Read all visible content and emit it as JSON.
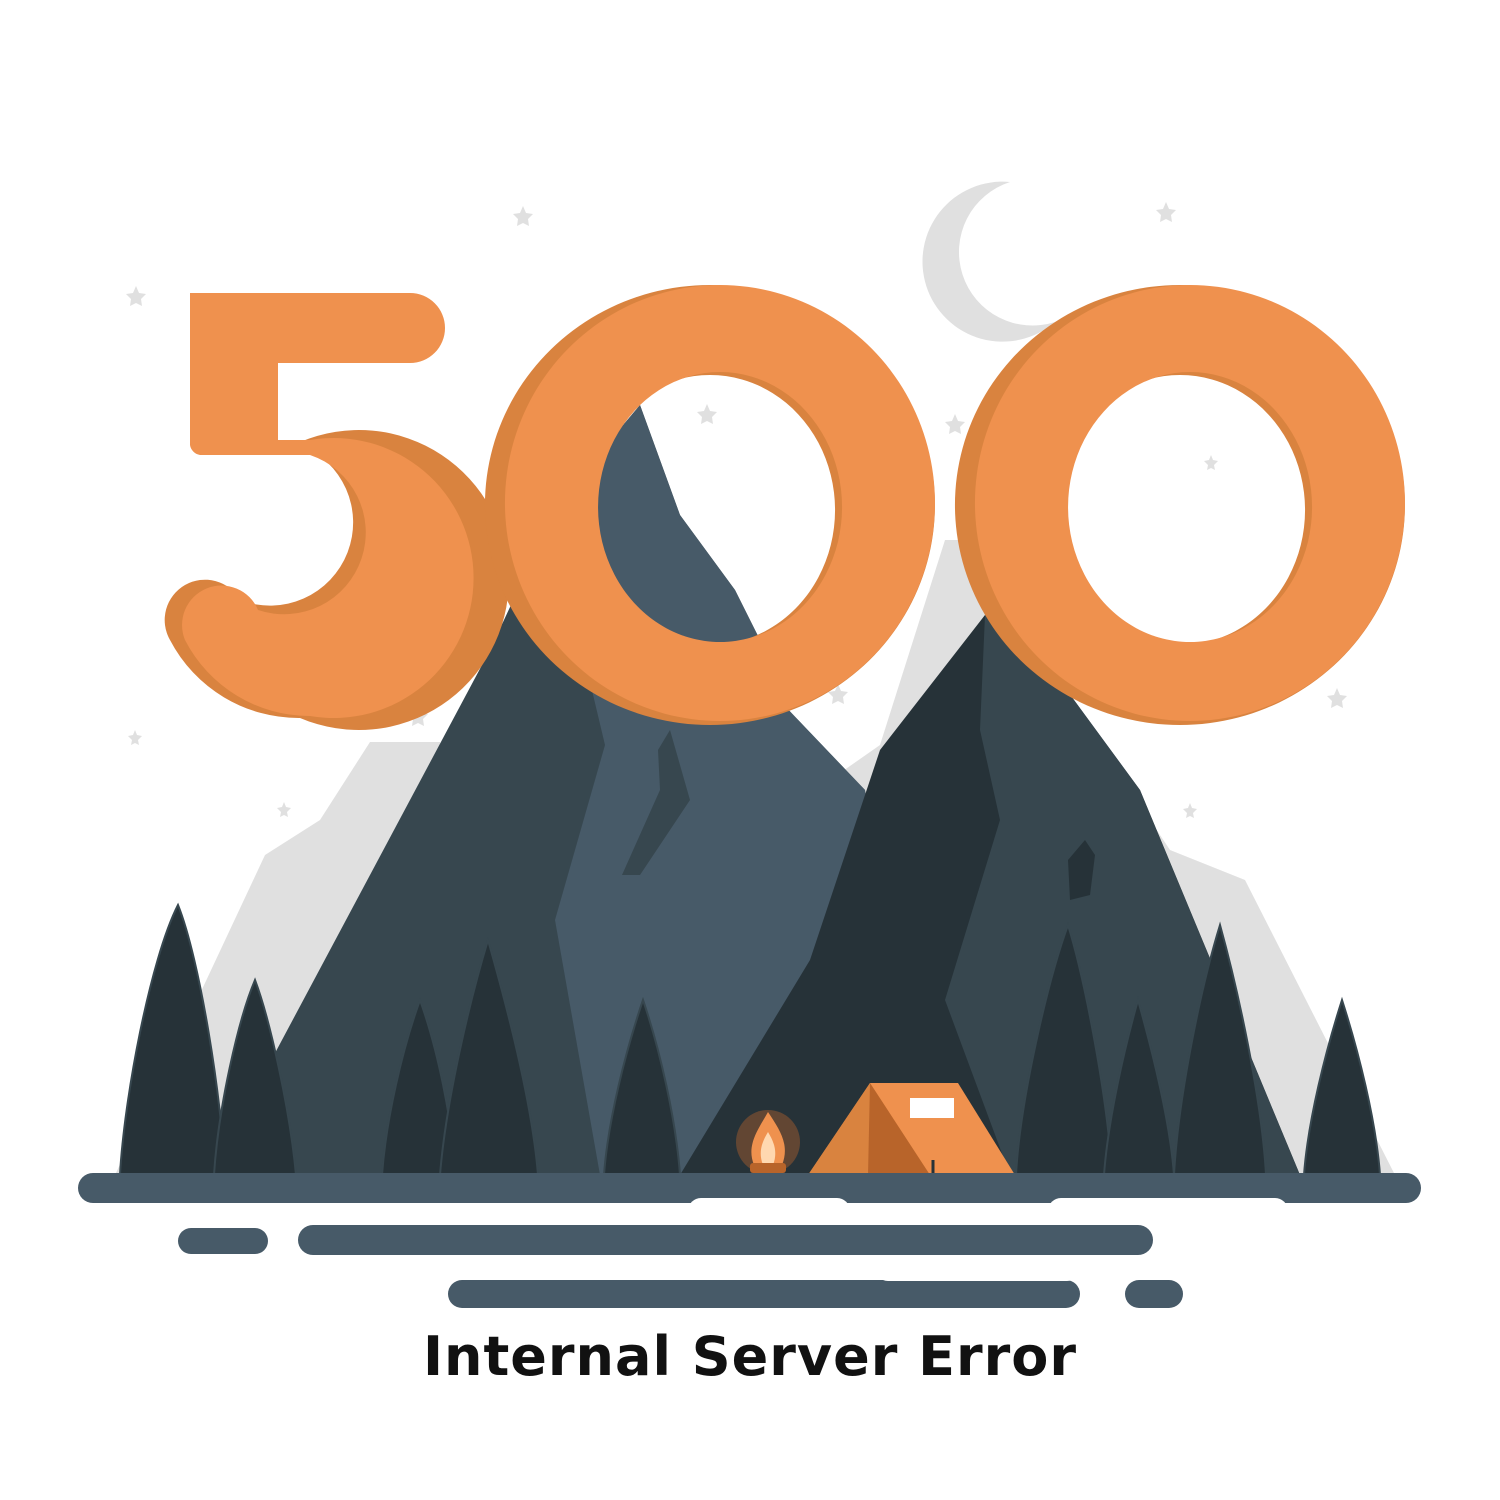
{
  "illustration": {
    "code_text": "500",
    "message_text": "Internal Server Error"
  },
  "colors": {
    "background": "#ffffff",
    "digit_front": "#ef914e",
    "digit_shadow": "#d9833f",
    "mountain_far": "#e0e0e0",
    "mountain_mid": "#475a68",
    "mountain_dark": "#37474f",
    "mountain_darkest": "#263238",
    "tent": "#ef914e",
    "tent_dark": "#b8642a",
    "fire": "#ef914e",
    "text": "#111111",
    "stars": "#e0e0e0"
  }
}
